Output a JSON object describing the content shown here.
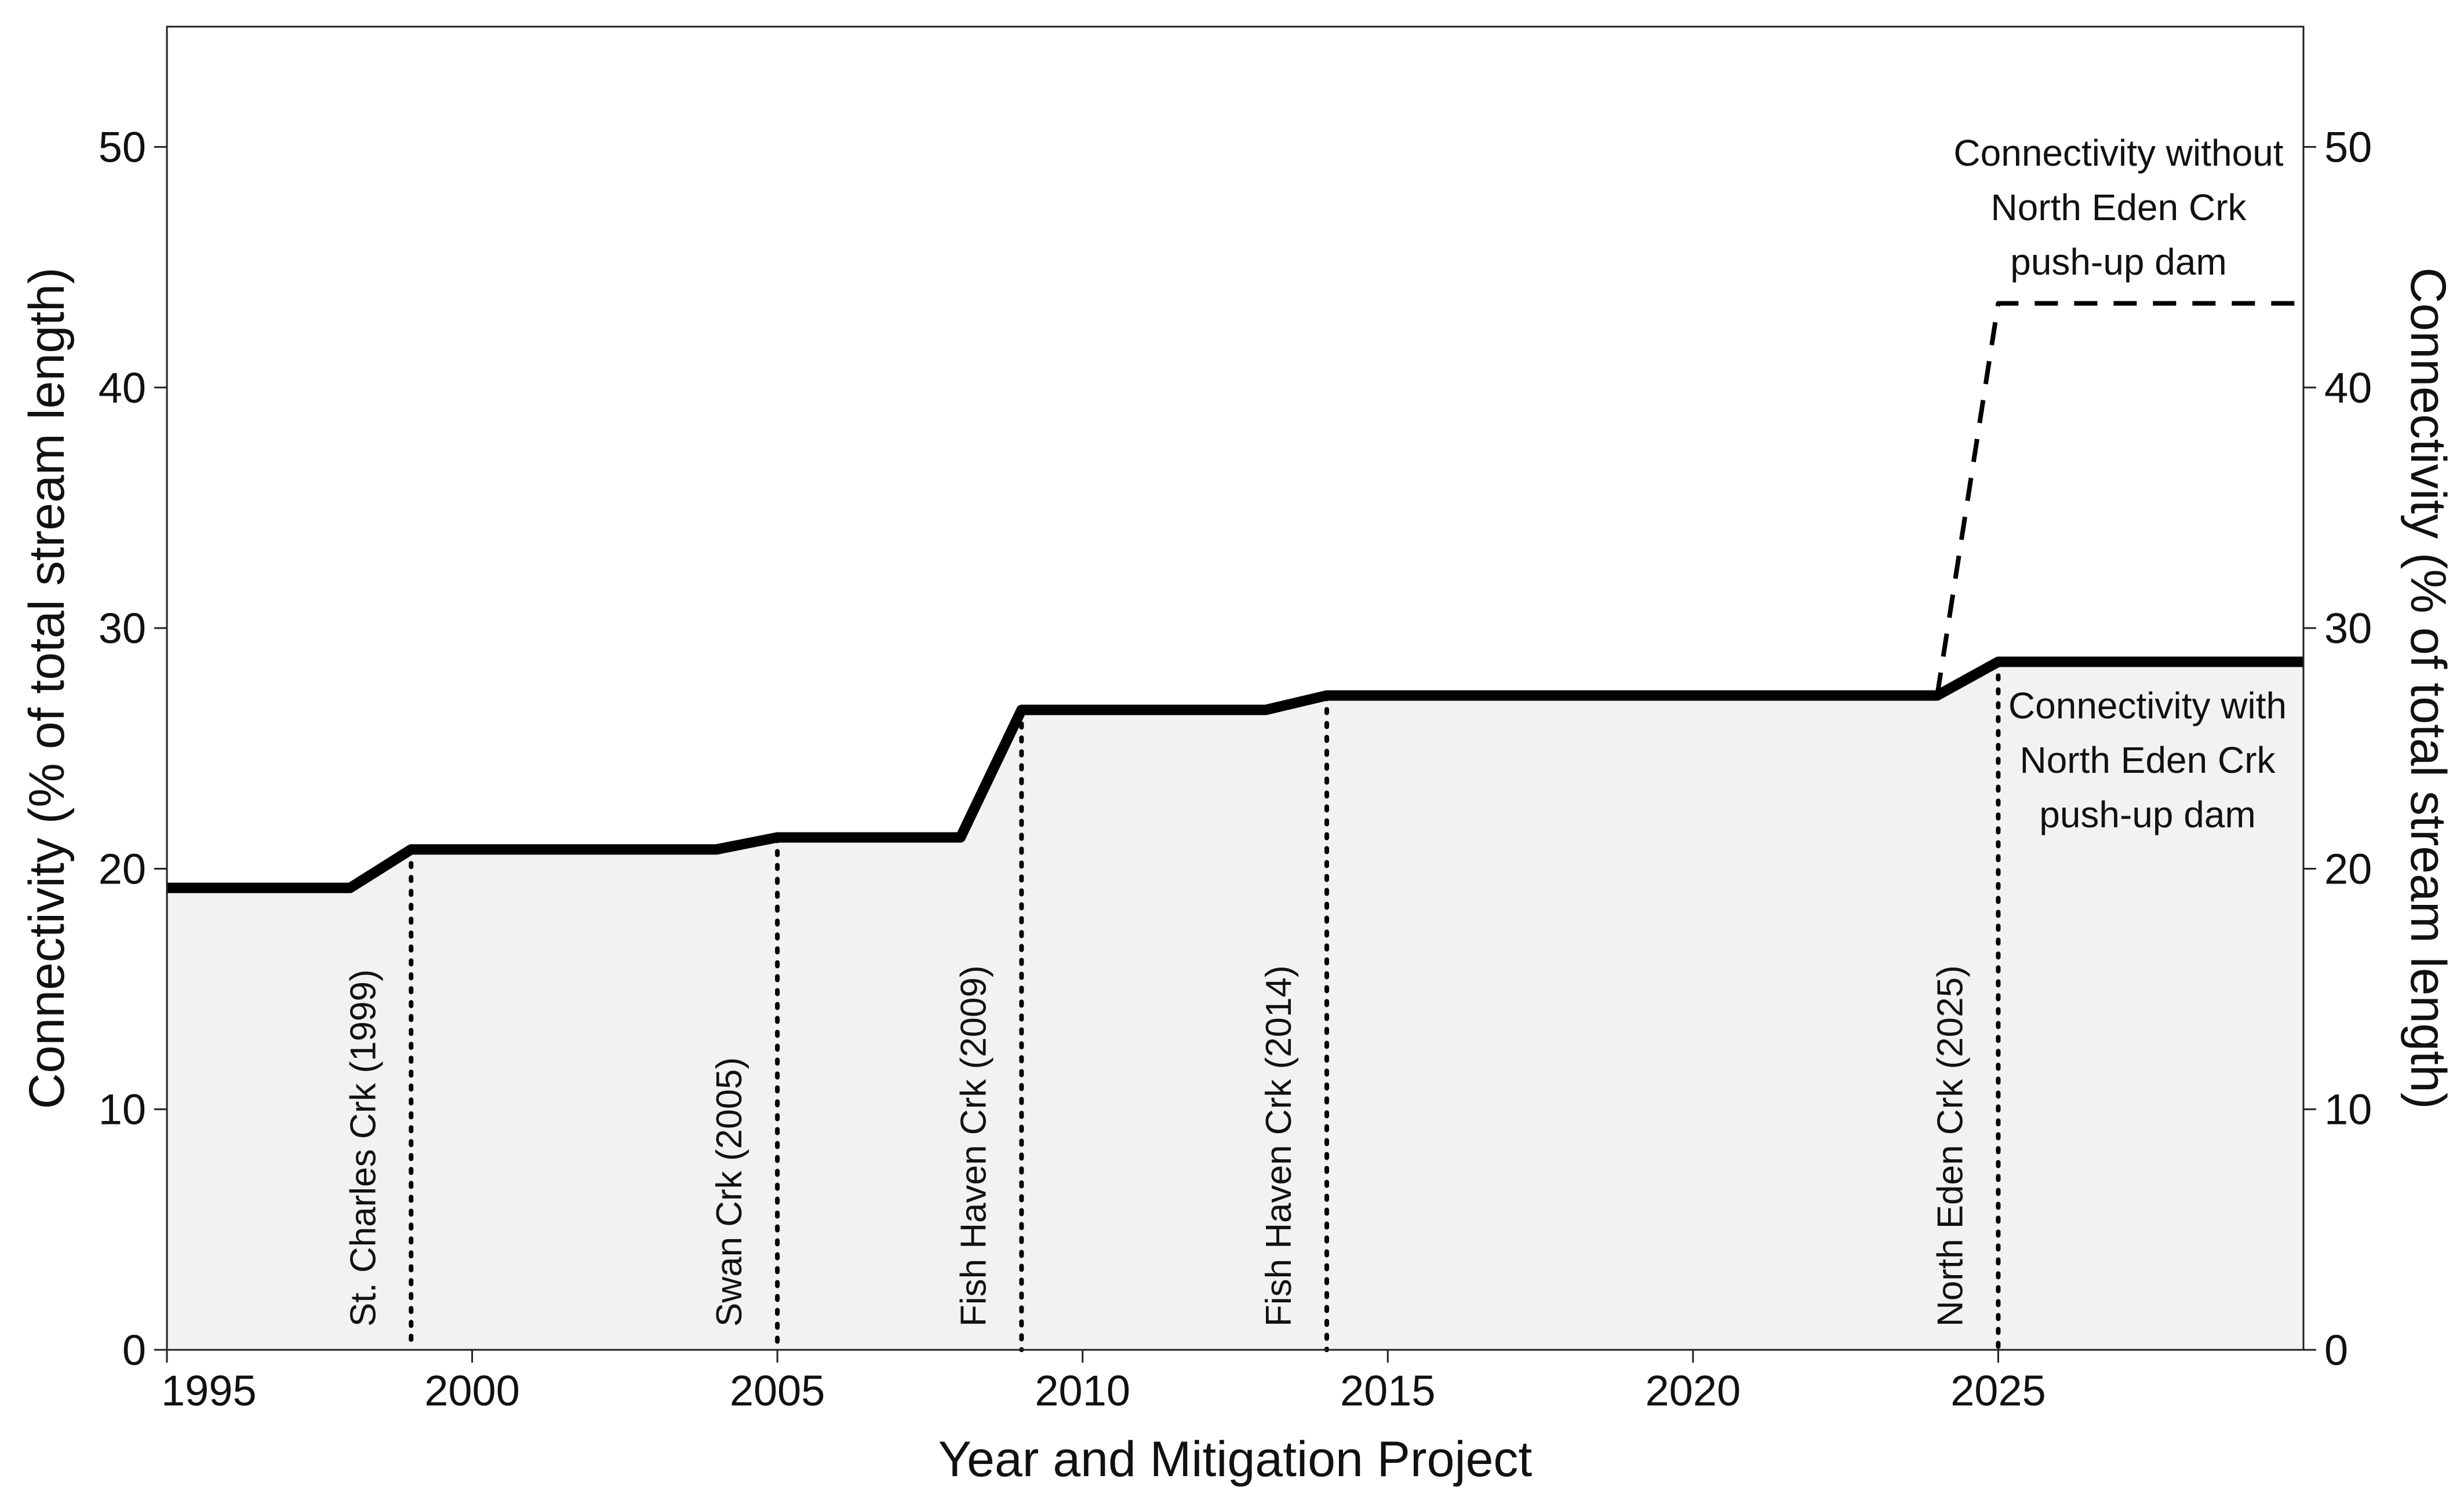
{
  "chart_data": {
    "type": "line",
    "title": "",
    "xlabel": "Year and Mitigation Project",
    "ylabel": "Connectivity (% of total stream length)",
    "ylabel_right": "Connectivity (% of total stream length)",
    "xlim": [
      1995,
      2030
    ],
    "ylim": [
      0,
      55
    ],
    "x_ticks": [
      1995,
      2000,
      2005,
      2010,
      2015,
      2020,
      2025
    ],
    "y_ticks": [
      0,
      10,
      20,
      30,
      40,
      50
    ],
    "grid": false,
    "legend": "none",
    "series": [
      {
        "name": "Connectivity with North Eden Crk push-up dam",
        "style": "solid",
        "color": "#000000",
        "fill": "#f2f2f2",
        "x": [
          1995,
          1998,
          1999,
          2004,
          2005,
          2008,
          2009,
          2013,
          2014,
          2024,
          2025,
          2030
        ],
        "y": [
          19.2,
          19.2,
          20.8,
          20.8,
          21.3,
          21.3,
          26.6,
          26.6,
          27.2,
          27.2,
          28.6,
          28.6
        ]
      },
      {
        "name": "Connectivity without North Eden Crk push-up dam",
        "style": "dashed",
        "color": "#000000",
        "x": [
          2024,
          2025,
          2030
        ],
        "y": [
          27.2,
          43.5,
          43.5
        ]
      }
    ],
    "events": [
      {
        "x": 1999,
        "label": "St. Charles Crk (1999)"
      },
      {
        "x": 2005,
        "label": "Swan Crk (2005)"
      },
      {
        "x": 2009,
        "label": "Fish Haven Crk (2009)"
      },
      {
        "x": 2014,
        "label": "Fish Haven Crk (2014)"
      },
      {
        "x": 2025,
        "label": "North Eden Crk (2025)"
      }
    ],
    "annotations": [
      {
        "anchor_series": 1,
        "lines": [
          "Connectivity without",
          "North Eden Crk",
          "push-up dam"
        ]
      },
      {
        "anchor_series": 0,
        "lines": [
          "Connectivity with",
          "North Eden Crk",
          "push-up dam"
        ]
      }
    ]
  }
}
